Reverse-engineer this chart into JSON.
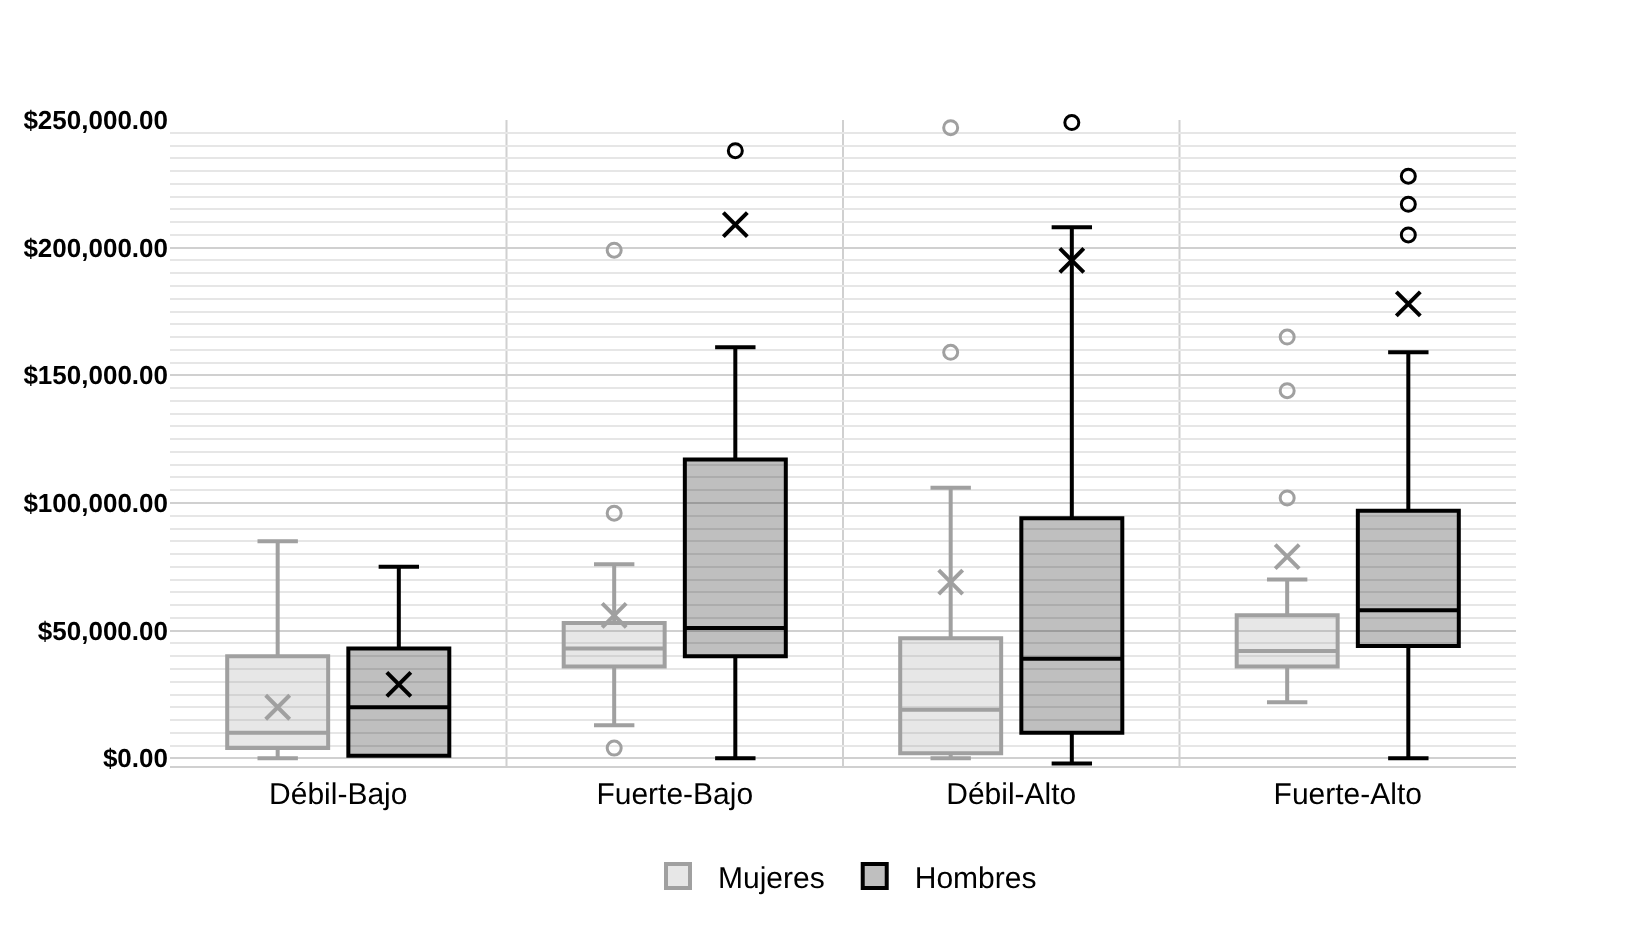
{
  "chart_data": {
    "type": "box",
    "categories": [
      "Débil-Bajo",
      "Fuerte-Bajo",
      "Débil-Alto",
      "Fuerte-Alto"
    ],
    "series": [
      {
        "name": "Mujeres",
        "color": "#a0a0a0",
        "boxes": [
          {
            "low": 0,
            "q1": 4000,
            "median": 10000,
            "q3": 40000,
            "high": 85000,
            "mean": 20000
          },
          {
            "low": 13000,
            "q1": 36000,
            "median": 43000,
            "q3": 53000,
            "high": 76000,
            "mean": 56000,
            "outliers": [
              199000,
              96000,
              4000
            ]
          },
          {
            "low": 0,
            "q1": 2000,
            "median": 19000,
            "q3": 47000,
            "high": 106000,
            "mean": 69000,
            "outliers": [
              247000,
              159000
            ]
          },
          {
            "low": 22000,
            "q1": 36000,
            "median": 42000,
            "q3": 56000,
            "high": 70000,
            "mean": 79000,
            "outliers": [
              165000,
              144000,
              102000
            ]
          }
        ]
      },
      {
        "name": "Hombres",
        "color": "#000000",
        "boxes": [
          {
            "low": 1000,
            "q1": 1000,
            "median": 20000,
            "q3": 43000,
            "high": 75000,
            "mean": 29000
          },
          {
            "low": 0,
            "q1": 40000,
            "median": 51000,
            "q3": 117000,
            "high": 161000,
            "mean": 209000,
            "outliers": [
              238000
            ]
          },
          {
            "low": -2000,
            "q1": 10000,
            "median": 39000,
            "q3": 94000,
            "high": 208000,
            "mean": 195000,
            "outliers": [
              249000
            ]
          },
          {
            "low": 0,
            "q1": 44000,
            "median": 58000,
            "q3": 97000,
            "high": 159000,
            "mean": 178000,
            "outliers": [
              228000,
              217000,
              205000
            ]
          }
        ]
      }
    ],
    "ylim": [
      -3000,
      250000
    ],
    "yticks": [
      {
        "value": 0,
        "label": "$0.00"
      },
      {
        "value": 50000,
        "label": "$50,000.00"
      },
      {
        "value": 100000,
        "label": "$100,000.00"
      },
      {
        "value": 150000,
        "label": "$150,000.00"
      },
      {
        "value": 200000,
        "label": "$200,000.00"
      },
      {
        "value": 250000,
        "label": "$250,000.00"
      }
    ],
    "grid": true,
    "legend": "bottom",
    "marker": "circle"
  }
}
